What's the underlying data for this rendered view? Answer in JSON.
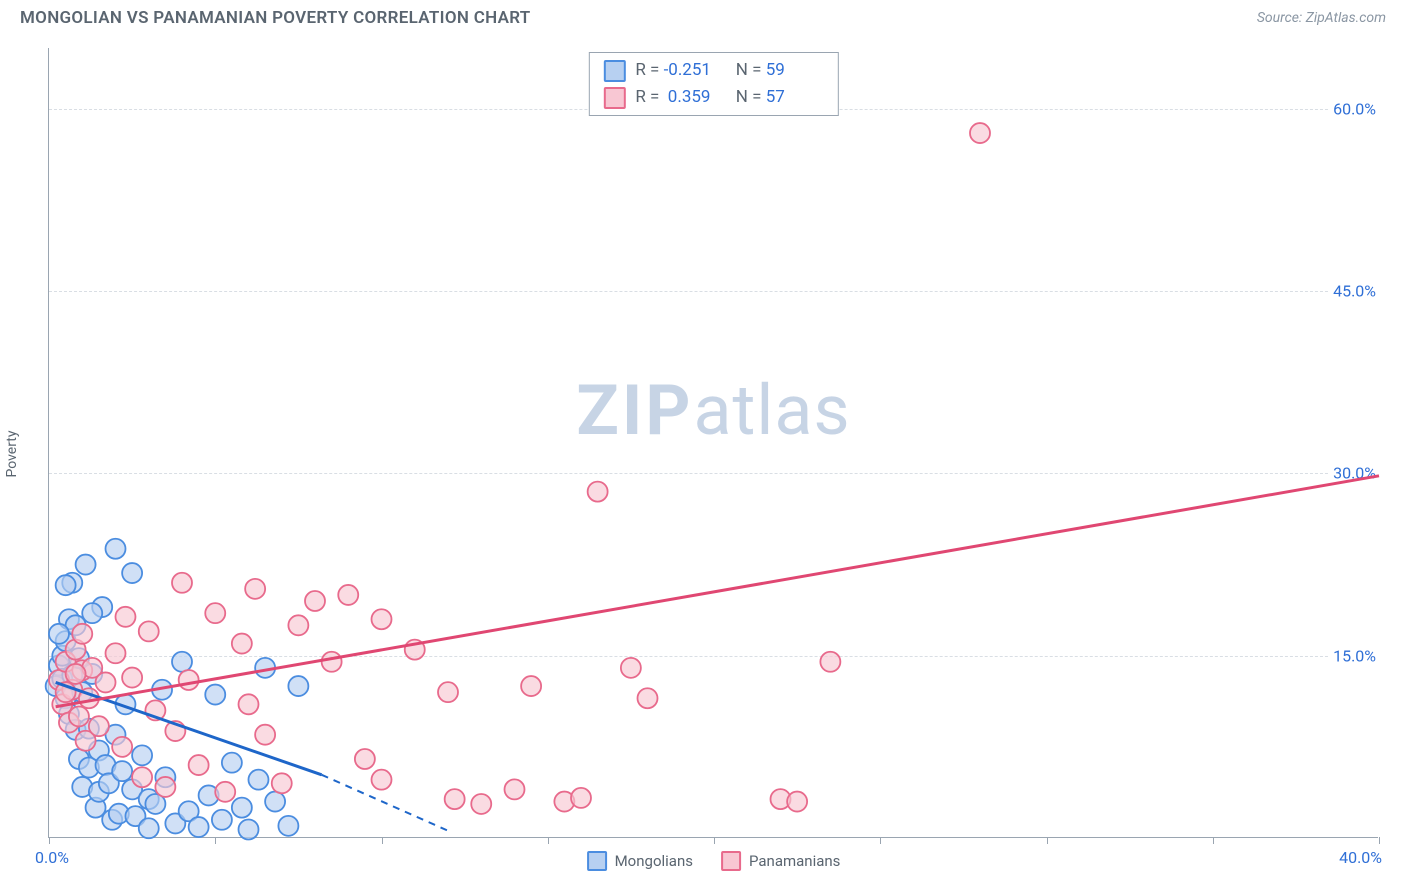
{
  "header": {
    "title": "MONGOLIAN VS PANAMANIAN POVERTY CORRELATION CHART",
    "source_prefix": "Source: ",
    "source_name": "ZipAtlas.com"
  },
  "watermark": {
    "zip": "ZIP",
    "atlas": "atlas"
  },
  "axes": {
    "y_label": "Poverty",
    "x_min": 0,
    "x_max": 40,
    "y_min": 0,
    "y_max": 65,
    "y_ticks": [
      15,
      30,
      45,
      60
    ],
    "y_tick_labels": [
      "15.0%",
      "30.0%",
      "45.0%",
      "60.0%"
    ],
    "x_ticks": [
      0,
      5,
      10,
      15,
      20,
      25,
      30,
      35,
      40
    ],
    "x_origin_label": "0.0%",
    "x_max_label": "40.0%",
    "tick_label_color": "#2f6fd6",
    "axis_color": "#9aa5b1",
    "grid_color": "#d9dee4"
  },
  "series": [
    {
      "id": "mongolians",
      "label": "Mongolians",
      "fill": "#b7d0f1",
      "stroke": "#4b8de0",
      "stroke_dark": "#1e66c9",
      "r_value": "-0.251",
      "n_value": "59",
      "marker_r": 10,
      "regression": {
        "x1": 0.2,
        "y1": 12.8,
        "x2": 8.2,
        "y2": 5.2,
        "dash_x2": 12,
        "dash_y2": 0.6
      },
      "points": [
        [
          0.2,
          12.5
        ],
        [
          0.3,
          14.2
        ],
        [
          0.4,
          15.0
        ],
        [
          0.4,
          13.1
        ],
        [
          0.5,
          16.2
        ],
        [
          0.5,
          11.5
        ],
        [
          0.6,
          18.0
        ],
        [
          0.6,
          10.2
        ],
        [
          0.7,
          13.4
        ],
        [
          0.7,
          21.0
        ],
        [
          0.8,
          17.5
        ],
        [
          0.8,
          8.9
        ],
        [
          0.9,
          14.8
        ],
        [
          0.9,
          6.5
        ],
        [
          1.0,
          12.0
        ],
        [
          1.0,
          4.2
        ],
        [
          1.1,
          22.5
        ],
        [
          1.2,
          9.0
        ],
        [
          1.2,
          5.8
        ],
        [
          1.3,
          13.5
        ],
        [
          1.4,
          2.5
        ],
        [
          1.5,
          7.2
        ],
        [
          1.5,
          3.8
        ],
        [
          1.6,
          19.0
        ],
        [
          1.7,
          6.0
        ],
        [
          1.8,
          4.5
        ],
        [
          1.9,
          1.5
        ],
        [
          2.0,
          23.8
        ],
        [
          2.0,
          8.5
        ],
        [
          2.1,
          2.0
        ],
        [
          2.2,
          5.5
        ],
        [
          2.3,
          11.0
        ],
        [
          2.5,
          4.0
        ],
        [
          2.5,
          21.8
        ],
        [
          2.6,
          1.8
        ],
        [
          2.8,
          6.8
        ],
        [
          3.0,
          3.2
        ],
        [
          3.0,
          0.8
        ],
        [
          3.2,
          2.8
        ],
        [
          3.4,
          12.2
        ],
        [
          3.5,
          5.0
        ],
        [
          3.8,
          1.2
        ],
        [
          4.0,
          14.5
        ],
        [
          4.2,
          2.2
        ],
        [
          4.5,
          0.9
        ],
        [
          4.8,
          3.5
        ],
        [
          5.0,
          11.8
        ],
        [
          5.2,
          1.5
        ],
        [
          5.5,
          6.2
        ],
        [
          5.8,
          2.5
        ],
        [
          6.0,
          0.7
        ],
        [
          6.3,
          4.8
        ],
        [
          6.5,
          14.0
        ],
        [
          6.8,
          3.0
        ],
        [
          7.2,
          1.0
        ],
        [
          7.5,
          12.5
        ],
        [
          0.5,
          20.8
        ],
        [
          1.3,
          18.5
        ],
        [
          0.3,
          16.8
        ]
      ]
    },
    {
      "id": "panamanians",
      "label": "Panamanians",
      "fill": "#f8c7d3",
      "stroke": "#e86a8c",
      "stroke_dark": "#e04772",
      "r_value": "0.359",
      "n_value": "57",
      "marker_r": 10,
      "regression": {
        "x1": 0.2,
        "y1": 10.8,
        "x2": 40,
        "y2": 29.8
      },
      "points": [
        [
          0.3,
          13.0
        ],
        [
          0.4,
          11.0
        ],
        [
          0.5,
          14.5
        ],
        [
          0.6,
          9.5
        ],
        [
          0.7,
          12.2
        ],
        [
          0.8,
          15.5
        ],
        [
          0.9,
          10.0
        ],
        [
          1.0,
          13.8
        ],
        [
          1.1,
          8.0
        ],
        [
          1.2,
          11.5
        ],
        [
          1.3,
          14.0
        ],
        [
          1.5,
          9.2
        ],
        [
          1.7,
          12.8
        ],
        [
          2.0,
          15.2
        ],
        [
          2.2,
          7.5
        ],
        [
          2.5,
          13.2
        ],
        [
          2.8,
          5.0
        ],
        [
          3.0,
          17.0
        ],
        [
          3.2,
          10.5
        ],
        [
          3.5,
          4.2
        ],
        [
          3.8,
          8.8
        ],
        [
          4.0,
          21.0
        ],
        [
          4.2,
          13.0
        ],
        [
          4.5,
          6.0
        ],
        [
          5.0,
          18.5
        ],
        [
          5.3,
          3.8
        ],
        [
          5.8,
          16.0
        ],
        [
          6.0,
          11.0
        ],
        [
          6.2,
          20.5
        ],
        [
          6.5,
          8.5
        ],
        [
          7.0,
          4.5
        ],
        [
          7.5,
          17.5
        ],
        [
          8.0,
          19.5
        ],
        [
          8.5,
          14.5
        ],
        [
          9.0,
          20.0
        ],
        [
          9.5,
          6.5
        ],
        [
          10.0,
          18.0
        ],
        [
          10.0,
          4.8
        ],
        [
          11.0,
          15.5
        ],
        [
          12.0,
          12.0
        ],
        [
          12.2,
          3.2
        ],
        [
          13.0,
          2.8
        ],
        [
          14.0,
          4.0
        ],
        [
          14.5,
          12.5
        ],
        [
          15.5,
          3.0
        ],
        [
          16.0,
          3.3
        ],
        [
          16.5,
          28.5
        ],
        [
          17.5,
          14.0
        ],
        [
          18.0,
          11.5
        ],
        [
          22.0,
          3.2
        ],
        [
          22.5,
          3.0
        ],
        [
          23.5,
          14.5
        ],
        [
          28.0,
          58.0
        ],
        [
          1.0,
          16.8
        ],
        [
          2.3,
          18.2
        ],
        [
          0.5,
          12.0
        ],
        [
          0.8,
          13.5
        ]
      ]
    }
  ],
  "stats_box": {
    "r_label": "R =",
    "n_label": "N ="
  },
  "legend_labels": {
    "mongolians": "Mongolians",
    "panamanians": "Panamanians"
  }
}
